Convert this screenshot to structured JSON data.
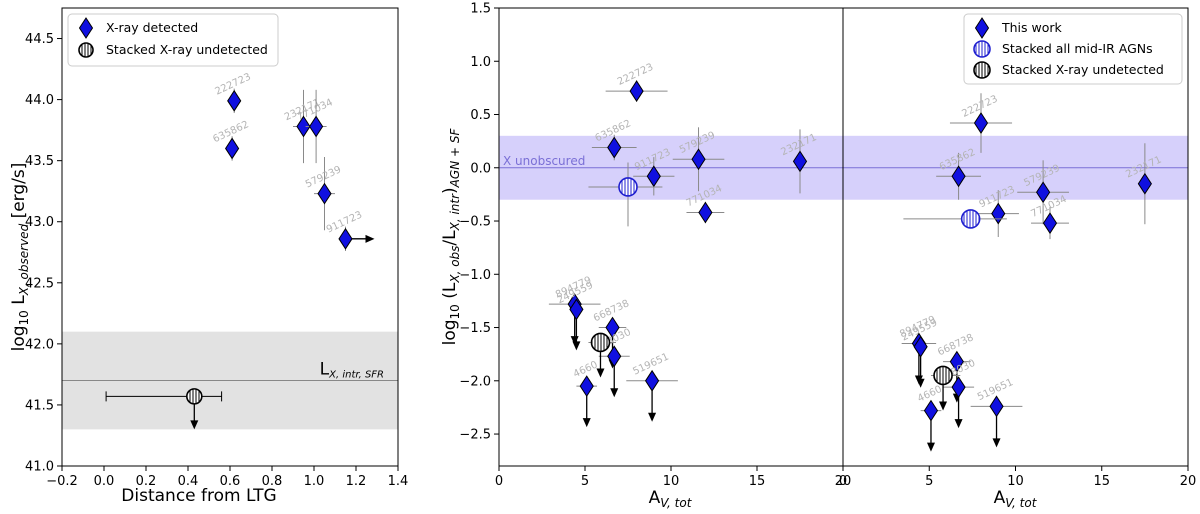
{
  "colors": {
    "diamond": "#1010e0",
    "band_grey": "#e2e2e2",
    "band_purple": "#d6d0fb",
    "unobscured_line": "#7a6fd6",
    "stack_allagn": "#2020d0",
    "errbar": "#8a8a8a"
  },
  "chart_data": [
    {
      "type": "scatter",
      "id": "left",
      "xlabel": "Distance from LTG",
      "ylabel": "log10 L_{X,observed} [erg/s]",
      "xlim": [
        -0.2,
        1.4
      ],
      "ylim": [
        41.0,
        44.75
      ],
      "xticks": [
        "−0.2",
        "0.0",
        "0.2",
        "0.4",
        "0.6",
        "0.8",
        "1.0",
        "1.2",
        "1.4"
      ],
      "xtick_values": [
        -0.2,
        0.0,
        0.2,
        0.4,
        0.6,
        0.8,
        1.0,
        1.2,
        1.4
      ],
      "yticks": [
        "41.0",
        "41.5",
        "42.0",
        "42.5",
        "43.0",
        "43.5",
        "44.0",
        "44.5"
      ],
      "ytick_values": [
        41.0,
        41.5,
        42.0,
        42.5,
        43.0,
        43.5,
        44.0,
        44.5
      ],
      "band": {
        "y0": 41.3,
        "y1": 42.1,
        "line": 41.7,
        "label": "L_{X,intr,SFR}"
      },
      "legend": {
        "position": "top-left",
        "entries": [
          "X-ray detected",
          "Stacked X-ray undetected"
        ]
      },
      "points": [
        {
          "id": "222723",
          "x": 0.62,
          "y": 43.99,
          "yerr": 0.1,
          "xerr": 0.0,
          "label": "222723"
        },
        {
          "id": "635862",
          "x": 0.61,
          "y": 43.6,
          "yerr": 0.1,
          "xerr": 0.0,
          "label": "635862"
        },
        {
          "id": "232171",
          "x": 0.95,
          "y": 43.78,
          "yerr": 0.3,
          "xerr": 0.05,
          "label": "232171"
        },
        {
          "id": "771034",
          "x": 1.01,
          "y": 43.78,
          "yerr": 0.3,
          "xerr": 0.05,
          "label": "771034"
        },
        {
          "id": "579239",
          "x": 1.05,
          "y": 43.23,
          "yerr": 0.3,
          "xerr": 0.05,
          "label": "579239"
        },
        {
          "id": "911723",
          "x": 1.15,
          "y": 42.86,
          "yerr": 0.1,
          "xerr": 0.0,
          "label": "911723",
          "arrow": "right"
        }
      ],
      "stack": {
        "x": 0.43,
        "y": 41.57,
        "xlo": 0.01,
        "xhi": 0.56,
        "arrow": "down"
      }
    },
    {
      "type": "scatter",
      "id": "mid",
      "xlabel": "A_{V,tot}",
      "ylabel": "log10 (L_{X,obs}/L_{X,intr})_{AGN+SF}",
      "xlim": [
        0,
        20
      ],
      "ylim": [
        -2.8,
        1.5
      ],
      "xticks": [
        "0",
        "5",
        "10",
        "15",
        "20"
      ],
      "xtick_values": [
        0,
        5,
        10,
        15,
        20
      ],
      "yticks": [
        "−2.5",
        "−2.0",
        "−1.5",
        "−1.0",
        "−0.5",
        "0.0",
        "0.5",
        "1.0",
        "1.5"
      ],
      "ytick_values": [
        -2.5,
        -2.0,
        -1.5,
        -1.0,
        -0.5,
        0.0,
        0.5,
        1.0,
        1.5
      ],
      "band": {
        "y0": -0.3,
        "y1": 0.3,
        "line": 0.0,
        "label": "X unobscured"
      },
      "points": [
        {
          "id": "222723",
          "x": 8.0,
          "y": 0.72,
          "xerr": 1.8,
          "yerr": 0.1,
          "label": "222723"
        },
        {
          "id": "635862",
          "x": 6.7,
          "y": 0.19,
          "xerr": 1.3,
          "yerr": 0.12,
          "label": "635862"
        },
        {
          "id": "911723",
          "x": 9.0,
          "y": -0.08,
          "xerr": 1.2,
          "yerr": 0.18,
          "label": "911723"
        },
        {
          "id": "579239",
          "x": 11.6,
          "y": 0.08,
          "xerr": 1.5,
          "yerr": 0.3,
          "label": "579239"
        },
        {
          "id": "771034",
          "x": 12.0,
          "y": -0.42,
          "xerr": 1.1,
          "yerr": 0.1,
          "label": "771034"
        },
        {
          "id": "232171",
          "x": 17.5,
          "y": 0.06,
          "xerr": 0.0,
          "yerr": 0.3,
          "label": "232171"
        },
        {
          "id": "894779",
          "x": 4.4,
          "y": -1.28,
          "xerr": 1.5,
          "yerr": 0.08,
          "label": "894779",
          "arrow": "down"
        },
        {
          "id": "249559",
          "x": 4.5,
          "y": -1.33,
          "xerr": 0.0,
          "yerr": 0.0,
          "label": "249559",
          "arrow": "down"
        },
        {
          "id": "668738",
          "x": 6.6,
          "y": -1.5,
          "xerr": 0.8,
          "yerr": 0.08,
          "label": "668738",
          "arrow": "down"
        },
        {
          "id": "4660",
          "x": 5.1,
          "y": -2.05,
          "xerr": 0.6,
          "yerr": 0.08,
          "label": "4660",
          "arrow": "down"
        },
        {
          "id": "578030",
          "x": 6.7,
          "y": -1.77,
          "xerr": 0.9,
          "yerr": 0.08,
          "label": "578030",
          "arrow": "down"
        },
        {
          "id": "519651",
          "x": 8.9,
          "y": -2.0,
          "xerr": 1.5,
          "yerr": 0.08,
          "label": "519651",
          "arrow": "down"
        }
      ],
      "stack_allagn": {
        "x": 7.5,
        "y": -0.18,
        "xlo": 5.2,
        "xhi": 9.5,
        "ylo": -0.55,
        "yhi": 0.05
      },
      "stack_undetected": {
        "x": 5.9,
        "y": -1.64,
        "xlo": 5.2,
        "xhi": 6.8,
        "arrow": "down"
      }
    },
    {
      "type": "scatter",
      "id": "right",
      "xlabel": "A_{V,tot}",
      "xlim": [
        0,
        20
      ],
      "ylim": [
        -2.8,
        1.5
      ],
      "xticks": [
        "0",
        "5",
        "10",
        "15",
        "20"
      ],
      "xtick_values": [
        0,
        5,
        10,
        15,
        20
      ],
      "band": {
        "y0": -0.3,
        "y1": 0.3,
        "line": 0.0
      },
      "legend": {
        "position": "top-right",
        "entries": [
          "This work",
          "Stacked all mid-IR AGNs",
          "Stacked X-ray undetected"
        ]
      },
      "points": [
        {
          "id": "222723",
          "x": 8.0,
          "y": 0.42,
          "xerr": 1.8,
          "yerr": 0.28,
          "label": "222723"
        },
        {
          "id": "635862",
          "x": 6.7,
          "y": -0.08,
          "xerr": 1.3,
          "yerr": 0.22,
          "label": "635862"
        },
        {
          "id": "911723",
          "x": 9.0,
          "y": -0.43,
          "xerr": 1.2,
          "yerr": 0.22,
          "label": "911723"
        },
        {
          "id": "579239",
          "x": 11.6,
          "y": -0.23,
          "xerr": 1.5,
          "yerr": 0.3,
          "label": "579239"
        },
        {
          "id": "771034",
          "x": 12.0,
          "y": -0.52,
          "xerr": 1.1,
          "yerr": 0.15,
          "label": "771034"
        },
        {
          "id": "232171",
          "x": 17.5,
          "y": -0.15,
          "xerr": 0.0,
          "yerr": 0.38,
          "label": "232171"
        },
        {
          "id": "894779",
          "x": 4.4,
          "y": -1.65,
          "xerr": 1.0,
          "yerr": 0.08,
          "label": "894779",
          "arrow": "down"
        },
        {
          "id": "249559",
          "x": 4.5,
          "y": -1.68,
          "xerr": 0.0,
          "yerr": 0.0,
          "label": "249559",
          "arrow": "down"
        },
        {
          "id": "668738",
          "x": 6.6,
          "y": -1.82,
          "xerr": 0.8,
          "yerr": 0.08,
          "label": "668738",
          "arrow": "down"
        },
        {
          "id": "4660",
          "x": 5.1,
          "y": -2.28,
          "xerr": 0.6,
          "yerr": 0.08,
          "label": "4660",
          "arrow": "down"
        },
        {
          "id": "578030",
          "x": 6.7,
          "y": -2.06,
          "xerr": 0.9,
          "yerr": 0.08,
          "label": "578030",
          "arrow": "down"
        },
        {
          "id": "519651",
          "x": 8.9,
          "y": -2.24,
          "xerr": 1.5,
          "yerr": 0.08,
          "label": "519651",
          "arrow": "down"
        }
      ],
      "stack_allagn": {
        "x": 7.4,
        "y": -0.48,
        "xlo": 3.5,
        "xhi": 9.5
      },
      "stack_undetected": {
        "x": 5.8,
        "y": -1.95,
        "xlo": 5.1,
        "xhi": 6.8,
        "arrow": "down"
      }
    }
  ]
}
